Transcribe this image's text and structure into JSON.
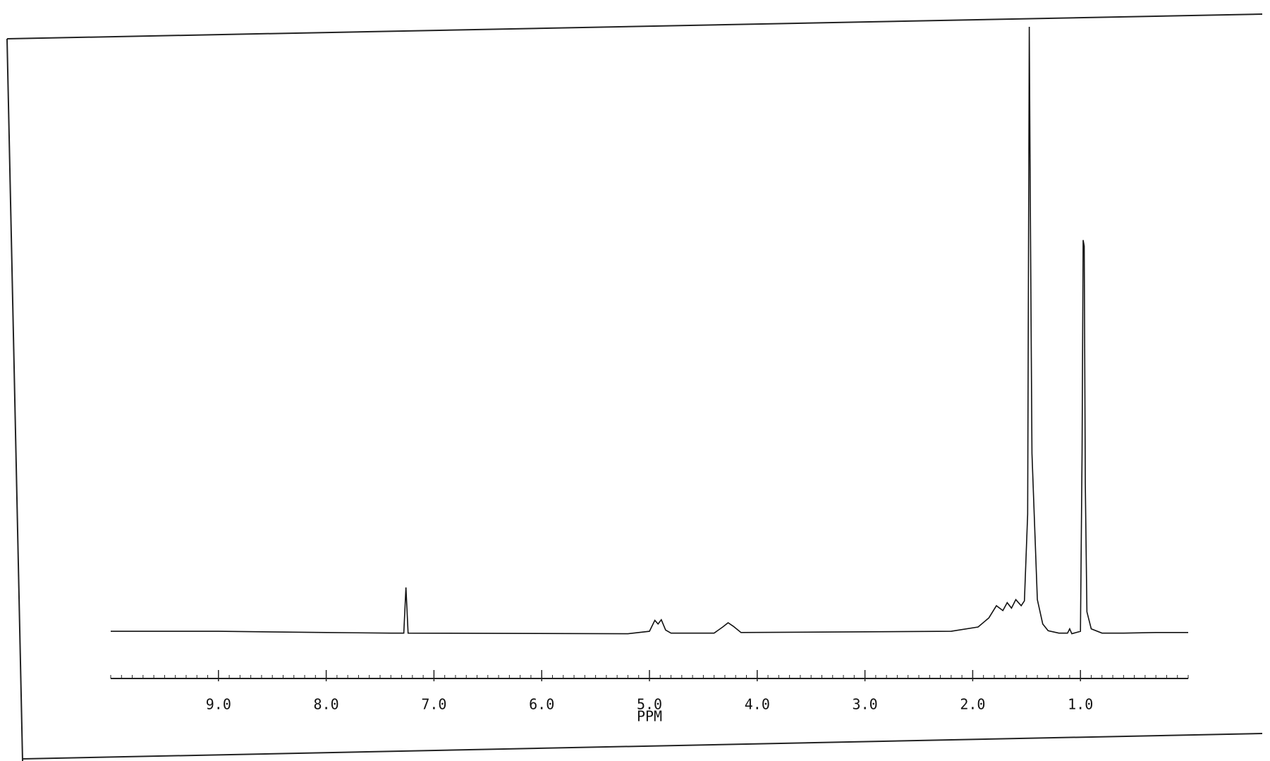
{
  "chart_data": {
    "type": "line",
    "x_label": "PPM",
    "xlim": [
      10,
      0
    ],
    "ylim": [
      0,
      100
    ],
    "xticks": [
      {
        "value": 9,
        "label": "9.0"
      },
      {
        "value": 8,
        "label": "8.0"
      },
      {
        "value": 7,
        "label": "7.0"
      },
      {
        "value": 6,
        "label": "6.0"
      },
      {
        "value": 5,
        "label": "5.0"
      },
      {
        "value": 4,
        "label": "4.0"
      },
      {
        "value": 3,
        "label": "3.0"
      },
      {
        "value": 2,
        "label": "2.0"
      },
      {
        "value": 1,
        "label": "1.0"
      }
    ],
    "series": [
      {
        "color": "#111111",
        "x": [
          10,
          9,
          8,
          7.4,
          7.28,
          7.26,
          7.24,
          5.2,
          5.0,
          4.95,
          4.92,
          4.89,
          4.85,
          4.8,
          4.4,
          4.32,
          4.27,
          4.22,
          4.15,
          2.2,
          1.95,
          1.85,
          1.78,
          1.72,
          1.68,
          1.64,
          1.6,
          1.55,
          1.52,
          1.49,
          1.475,
          1.465,
          1.45,
          1.4,
          1.35,
          1.3,
          1.2,
          1.12,
          1.1,
          1.08,
          1.0,
          0.985,
          0.975,
          0.965,
          0.955,
          0.94,
          0.9,
          0.8,
          0.6,
          0.3,
          0
        ],
        "values": [
          0.8,
          0.8,
          0.6,
          0.5,
          0.5,
          8.0,
          0.5,
          0.4,
          0.8,
          2.6,
          2.0,
          2.7,
          1.0,
          0.5,
          0.5,
          1.5,
          2.2,
          1.6,
          0.6,
          0.8,
          1.5,
          3,
          5,
          4.2,
          5.5,
          4.6,
          6,
          5,
          5.8,
          20,
          100,
          70,
          30,
          6,
          2,
          0.9,
          0.5,
          0.5,
          1.2,
          0.4,
          0.8,
          30,
          65,
          64,
          25,
          4,
          1.2,
          0.5,
          0.5,
          0.6,
          0.6
        ]
      }
    ]
  }
}
